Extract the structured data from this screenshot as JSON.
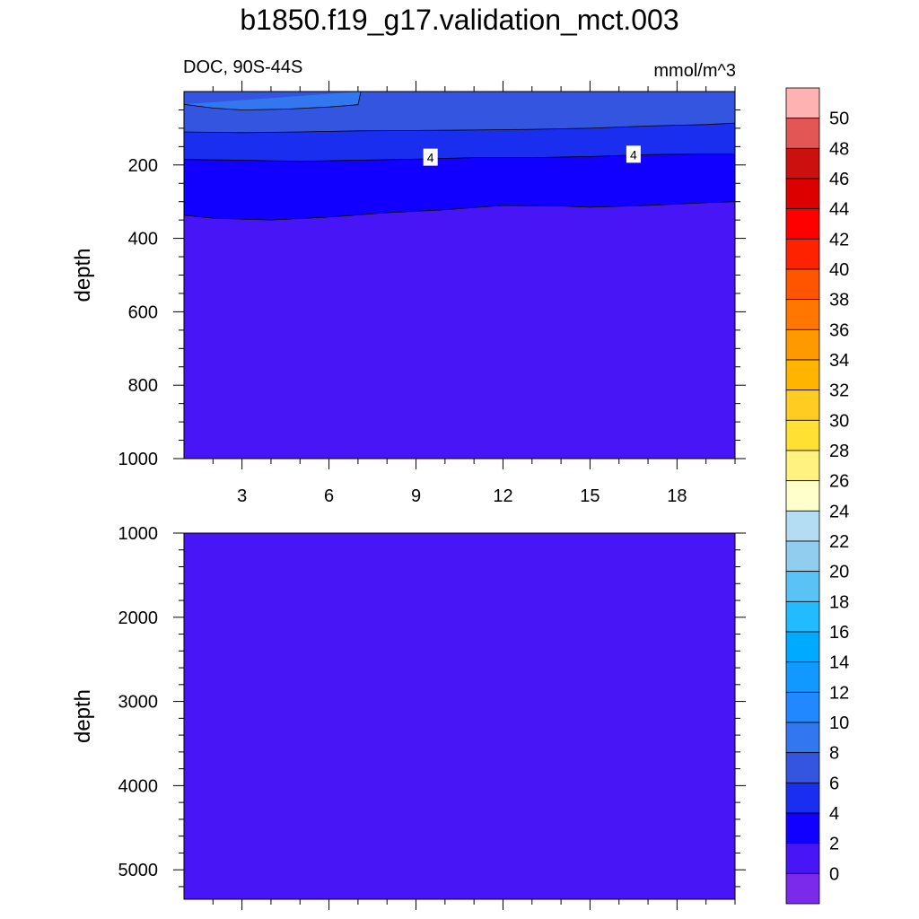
{
  "title": "b1850.f19_g17.validation_mct.003",
  "subtitle_left": "DOC, 90S-44S",
  "subtitle_right": "mmol/m^3",
  "chart_data": [
    {
      "type": "contour",
      "panel": "upper",
      "ylabel": "depth",
      "xlabel": "",
      "xlim": [
        1,
        20
      ],
      "ylim": [
        1000,
        0
      ],
      "x_ticks": [
        "3",
        "6",
        "9",
        "12",
        "15",
        "18"
      ],
      "x_tick_values": [
        3,
        6,
        9,
        12,
        15,
        18
      ],
      "y_ticks": [
        "200",
        "400",
        "600",
        "800",
        "1000"
      ],
      "y_tick_values": [
        200,
        400,
        600,
        800,
        1000
      ],
      "contour_labels": [
        {
          "text": "4",
          "x": 9.5,
          "depth": 180
        },
        {
          "text": "4",
          "x": 16.5,
          "depth": 172
        }
      ],
      "contour_lines": [
        {
          "level": 8,
          "points": [
            [
              1,
              35
            ],
            [
              2,
              45
            ],
            [
              3,
              50
            ],
            [
              4.5,
              48
            ],
            [
              6,
              42
            ],
            [
              7,
              36
            ],
            [
              7.1,
              0
            ]
          ]
        },
        {
          "level": 6,
          "points": [
            [
              1,
              110
            ],
            [
              3,
              112
            ],
            [
              5,
              110
            ],
            [
              7,
              107
            ],
            [
              9,
              106
            ],
            [
              11,
              105
            ],
            [
              13,
              103
            ],
            [
              15,
              100
            ],
            [
              17,
              94
            ],
            [
              19,
              90
            ],
            [
              20,
              86
            ]
          ]
        },
        {
          "level": 4,
          "points": [
            [
              1,
              185
            ],
            [
              3,
              187
            ],
            [
              5,
              190
            ],
            [
              7,
              187
            ],
            [
              9,
              184
            ],
            [
              11,
              180
            ],
            [
              13,
              180
            ],
            [
              15,
              177
            ],
            [
              17,
              172
            ],
            [
              19,
              170
            ],
            [
              20,
              170
            ]
          ]
        },
        {
          "level": 2,
          "points": [
            [
              1,
              337
            ],
            [
              2,
              345
            ],
            [
              4,
              350
            ],
            [
              6,
              342
            ],
            [
              8,
              330
            ],
            [
              10,
              322
            ],
            [
              12,
              310
            ],
            [
              14,
              312
            ],
            [
              15,
              315
            ],
            [
              17,
              310
            ],
            [
              19,
              303
            ],
            [
              20,
              300
            ]
          ]
        }
      ]
    },
    {
      "type": "contour",
      "panel": "lower",
      "ylabel": "depth",
      "xlabel": "",
      "xlim": [
        1,
        20
      ],
      "ylim": [
        5350,
        1000
      ],
      "x_tick_values": [
        3,
        6,
        9,
        12,
        15,
        18
      ],
      "y_ticks": [
        "1000",
        "2000",
        "3000",
        "4000",
        "5000"
      ],
      "y_tick_values": [
        1000,
        2000,
        3000,
        4000,
        5000
      ],
      "fill_level": "0-2"
    }
  ],
  "colorbar": {
    "labels": [
      "50",
      "48",
      "46",
      "44",
      "42",
      "40",
      "38",
      "36",
      "34",
      "32",
      "30",
      "28",
      "26",
      "24",
      "22",
      "20",
      "18",
      "16",
      "14",
      "12",
      "10",
      "8",
      "6",
      "4",
      "2",
      "0"
    ],
    "colors_top_to_bottom": [
      "#ffb2b2",
      "#e25656",
      "#cc1010",
      "#dd0000",
      "#ff0000",
      "#ff2200",
      "#ff5500",
      "#ff7700",
      "#ff9900",
      "#ffb400",
      "#ffcc22",
      "#ffe033",
      "#fff280",
      "#ffffcc",
      "#b4ddf4",
      "#90cdef",
      "#5bc2f5",
      "#22bbff",
      "#00aaff",
      "#1199ff",
      "#2288ff",
      "#3377f0",
      "#3355e0",
      "#1a2ef0",
      "#1100ff",
      "#4815f6",
      "#7a2ae8"
    ]
  },
  "colors": {
    "fill_0_2": "#4815f6",
    "fill_2_4": "#1100ff",
    "fill_4_6": "#1a2ef0",
    "fill_6_8": "#3355e0",
    "fill_8_10": "#3377f0"
  }
}
